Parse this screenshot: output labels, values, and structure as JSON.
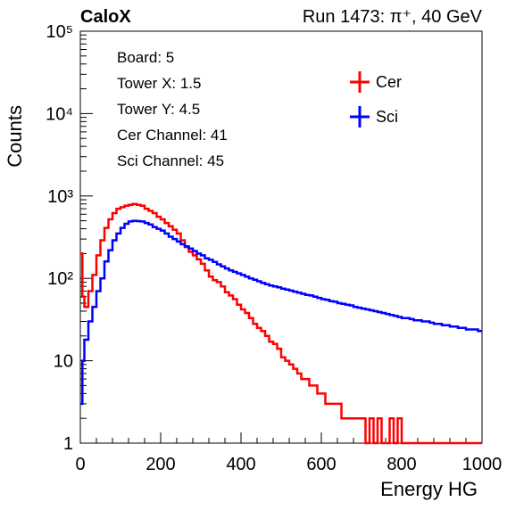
{
  "header": {
    "title": "CaloX",
    "run": "Run 1473:   π⁺, 40 GeV"
  },
  "info": {
    "lines": [
      "Board: 5",
      "Tower X: 1.5",
      "Tower Y: 4.5",
      "Cer Channel: 41",
      "Sci Channel: 45"
    ]
  },
  "legend": {
    "items": [
      "Cer",
      "Sci"
    ]
  },
  "colors": {
    "cer": "#ff0000",
    "sci": "#0000ff",
    "axis": "#000000"
  },
  "chart_data": {
    "type": "line",
    "xlabel": "Energy HG",
    "ylabel": "Counts",
    "xlim": [
      0,
      1000
    ],
    "ylim": [
      1,
      100000
    ],
    "yscale": "log",
    "xticks": [
      0,
      200,
      400,
      600,
      800,
      1000
    ],
    "yticks": [
      {
        "value": 1,
        "label": "1"
      },
      {
        "value": 10,
        "label": "10"
      },
      {
        "value": 100,
        "label": "10²"
      },
      {
        "value": 1000,
        "label": "10³"
      },
      {
        "value": 10000,
        "label": "10⁴"
      },
      {
        "value": 100000,
        "label": "10⁵"
      }
    ],
    "legend_position": "top-right",
    "series": [
      {
        "name": "Cer",
        "color": "#ff0000",
        "x": [
          0,
          5,
          10,
          20,
          30,
          40,
          50,
          60,
          70,
          80,
          90,
          100,
          110,
          120,
          130,
          140,
          150,
          160,
          170,
          180,
          190,
          200,
          210,
          220,
          230,
          240,
          250,
          260,
          270,
          280,
          290,
          300,
          310,
          320,
          330,
          340,
          350,
          360,
          370,
          380,
          390,
          400,
          410,
          420,
          430,
          440,
          450,
          460,
          470,
          480,
          490,
          500,
          510,
          520,
          530,
          540,
          550,
          560,
          570,
          580,
          590,
          600,
          610,
          620,
          630,
          640,
          650,
          660,
          670,
          680,
          690,
          700,
          710,
          720,
          730,
          740,
          750,
          760,
          770,
          780,
          790,
          800,
          810,
          820,
          830,
          840,
          850,
          860,
          870,
          880,
          890,
          900,
          910,
          920,
          930,
          940,
          950,
          960,
          970,
          980,
          990,
          1000
        ],
        "values": [
          200,
          60,
          45,
          70,
          110,
          190,
          290,
          410,
          520,
          620,
          700,
          730,
          760,
          780,
          800,
          780,
          760,
          700,
          660,
          620,
          560,
          520,
          470,
          430,
          390,
          350,
          290,
          240,
          210,
          190,
          170,
          150,
          125,
          105,
          95,
          90,
          80,
          68,
          62,
          56,
          48,
          42,
          38,
          33,
          28,
          25,
          23,
          20,
          17,
          16,
          14,
          11,
          10,
          9,
          8,
          7,
          6,
          6,
          5,
          5,
          4,
          4,
          3,
          3,
          3,
          3,
          2,
          2,
          2,
          2,
          2,
          2,
          1,
          2,
          1,
          2,
          1,
          1,
          2,
          1,
          2,
          1,
          1,
          1,
          1,
          1,
          1,
          1,
          1,
          1,
          1,
          1,
          1,
          1,
          1,
          1,
          1,
          1,
          1,
          1,
          1,
          1
        ]
      },
      {
        "name": "Sci",
        "color": "#0000ff",
        "x": [
          0,
          5,
          10,
          20,
          30,
          40,
          50,
          60,
          70,
          80,
          90,
          100,
          110,
          120,
          130,
          140,
          150,
          160,
          170,
          180,
          190,
          200,
          210,
          220,
          230,
          240,
          250,
          260,
          270,
          280,
          290,
          300,
          310,
          320,
          330,
          340,
          350,
          360,
          370,
          380,
          390,
          400,
          410,
          420,
          430,
          440,
          450,
          460,
          470,
          480,
          490,
          500,
          510,
          520,
          530,
          540,
          550,
          560,
          570,
          580,
          590,
          600,
          610,
          620,
          630,
          640,
          650,
          660,
          670,
          680,
          690,
          700,
          710,
          720,
          730,
          740,
          750,
          760,
          770,
          780,
          790,
          800,
          810,
          820,
          830,
          840,
          850,
          860,
          870,
          880,
          890,
          900,
          910,
          920,
          930,
          940,
          950,
          960,
          970,
          980,
          990,
          1000
        ],
        "values": [
          3,
          10,
          18,
          30,
          45,
          70,
          100,
          160,
          220,
          290,
          350,
          410,
          460,
          490,
          500,
          495,
          490,
          470,
          450,
          420,
          400,
          380,
          350,
          320,
          300,
          280,
          260,
          245,
          230,
          215,
          200,
          190,
          175,
          168,
          158,
          148,
          140,
          132,
          125,
          120,
          115,
          110,
          105,
          100,
          96,
          92,
          88,
          85,
          82,
          80,
          78,
          75,
          73,
          71,
          69,
          67,
          65,
          63,
          62,
          60,
          58,
          56,
          55,
          53,
          52,
          50,
          49,
          48,
          47,
          45,
          44,
          43,
          42,
          41,
          40,
          39,
          38,
          37,
          36,
          35,
          34,
          33,
          33,
          32,
          31,
          31,
          30,
          30,
          29,
          28,
          28,
          27,
          27,
          26,
          26,
          25,
          25,
          24,
          24,
          24,
          23,
          23
        ]
      }
    ]
  }
}
